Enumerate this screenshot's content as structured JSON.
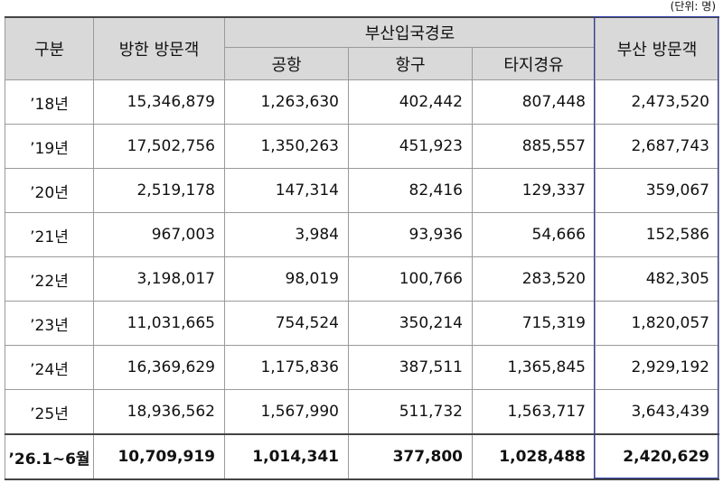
{
  "unit": "(단위: 명)",
  "header": {
    "category": "구분",
    "national": "방한 방문객",
    "route": "부산입국경로",
    "routes": [
      "공항",
      "항구",
      "타지경유"
    ],
    "busan": "부산 방문객"
  },
  "table": {
    "rows": [
      [
        "’18년",
        "15,346,879",
        "1,263,630",
        "402,442",
        "807,448",
        "2,473,520"
      ],
      [
        "’19년",
        "17,502,756",
        "1,350,263",
        "451,923",
        "885,557",
        "2,687,743"
      ],
      [
        "’20년",
        "2,519,178",
        "147,314",
        "82,416",
        "129,337",
        "359,067"
      ],
      [
        "’21년",
        "967,003",
        "3,984",
        "93,936",
        "54,666",
        "152,586"
      ],
      [
        "’22년",
        "3,198,017",
        "98,019",
        "100,766",
        "283,520",
        "482,305"
      ],
      [
        "’23년",
        "11,031,665",
        "754,524",
        "350,214",
        "715,319",
        "1,820,057"
      ],
      [
        "’24년",
        "16,369,629",
        "1,175,836",
        "387,511",
        "1,365,845",
        "2,929,192"
      ],
      [
        "’25년",
        "18,936,562",
        "1,567,990",
        "511,732",
        "1,563,717",
        "3,643,439"
      ],
      [
        "’26.1~6월",
        "10,709,919",
        "1,014,341",
        "377,800",
        "1,028,488",
        "2,420,629"
      ]
    ]
  }
}
